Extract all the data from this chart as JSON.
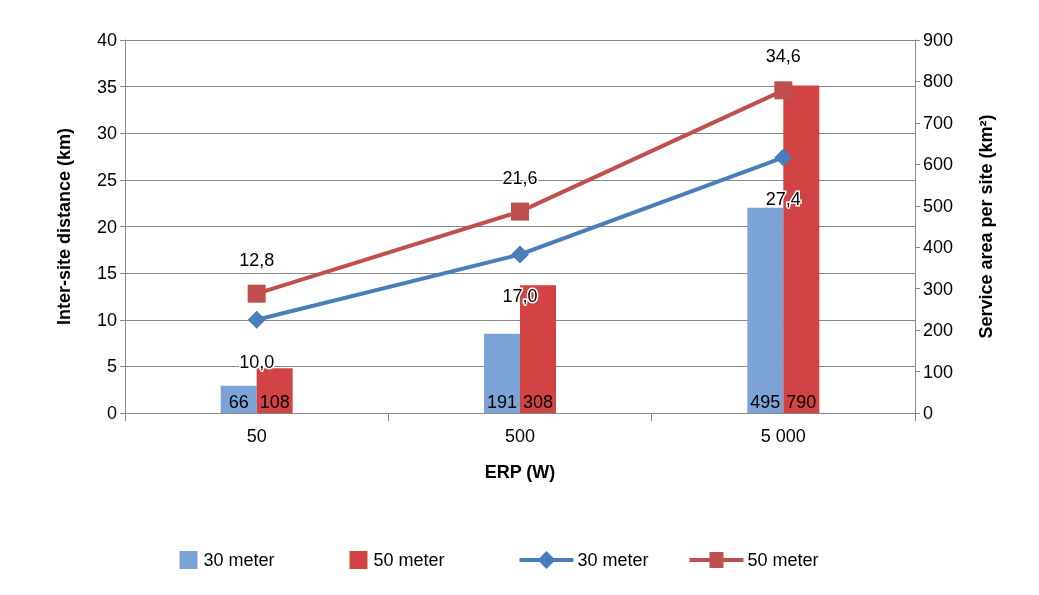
{
  "chart_data": {
    "type": "bar",
    "xlabel": "ERP (W)",
    "ylabel": "Inter-site distance (km)",
    "y2label": "Service area per site (km²)",
    "categories": [
      "50",
      "500",
      "5 000"
    ],
    "series": [
      {
        "name": "30 meter",
        "axis": "y2",
        "color": "#7ba3d6",
        "values": [
          66,
          191,
          495
        ],
        "value_labels": [
          "66",
          "191",
          "495"
        ]
      },
      {
        "name": "50 meter",
        "axis": "y2",
        "color": "#d24343",
        "values": [
          108,
          308,
          790
        ],
        "value_labels": [
          "108",
          "308",
          "790"
        ]
      },
      {
        "name": "30 meter",
        "type": "line",
        "color": "#4a7ebb",
        "marker": "diamond",
        "values": [
          10.0,
          17.0,
          27.4
        ],
        "value_labels": [
          "10,0",
          "17,0",
          "27,4"
        ]
      },
      {
        "name": "50 meter",
        "type": "line",
        "color": "#c0504d",
        "marker": "square",
        "values": [
          12.8,
          21.6,
          34.6
        ],
        "value_labels": [
          "12,8",
          "21,6",
          "34,6"
        ]
      }
    ],
    "ylim": [
      0,
      40
    ],
    "yticks": [
      0,
      5,
      10,
      15,
      20,
      25,
      30,
      35,
      40
    ],
    "y2lim": [
      0,
      900
    ],
    "y2ticks": [
      0,
      100,
      200,
      300,
      400,
      500,
      600,
      700,
      800,
      900
    ],
    "grid": "y",
    "legend": "bottom",
    "line_style": "solid"
  }
}
